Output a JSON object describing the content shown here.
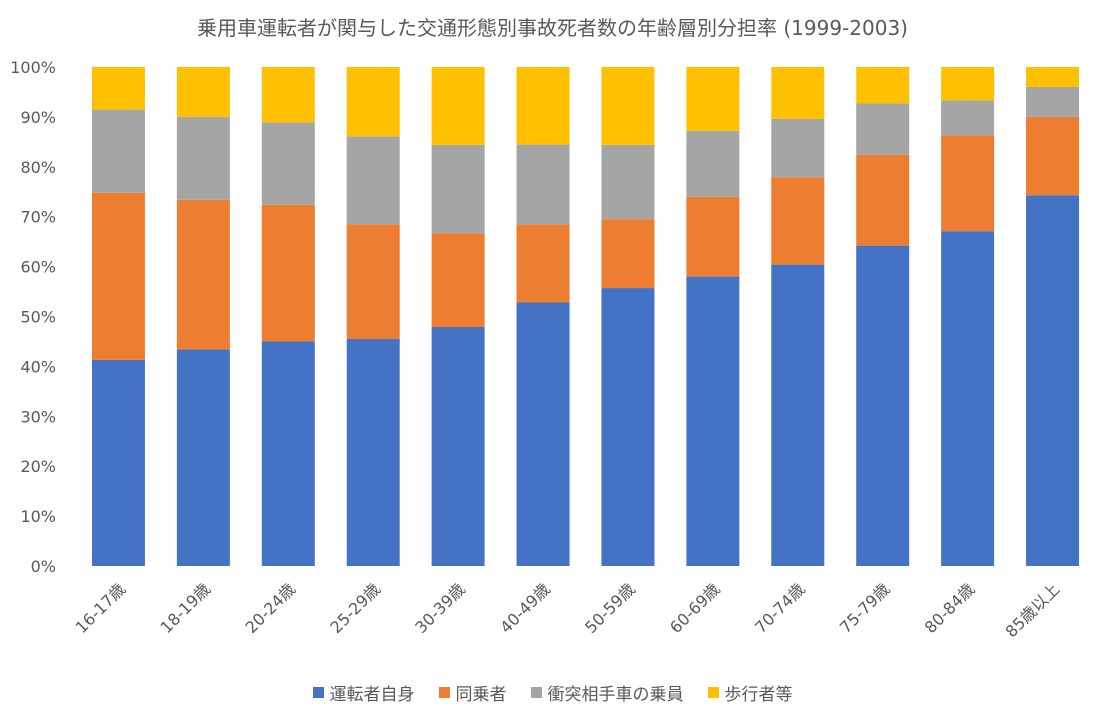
{
  "chart_data": {
    "type": "bar",
    "stacked": "percent",
    "title": "乗用車運転者が関与した交通形態別事故死者数の年齢層別分担率 (1999-2003)",
    "xlabel": "",
    "ylabel": "",
    "ylim": [
      0,
      100
    ],
    "y_ticks": [
      "0%",
      "10%",
      "20%",
      "30%",
      "40%",
      "50%",
      "60%",
      "70%",
      "80%",
      "90%",
      "100%"
    ],
    "grid": false,
    "legend_position": "bottom",
    "categories": [
      "16-17歳",
      "18-19歳",
      "20-24歳",
      "25-29歳",
      "30-39歳",
      "40-49歳",
      "50-59歳",
      "60-69歳",
      "70-74歳",
      "75-79歳",
      "80-84歳",
      "85歳以上"
    ],
    "series": [
      {
        "name": "運転者自身",
        "color": "#4472C4",
        "values": [
          41.3,
          43.4,
          45.0,
          45.5,
          47.9,
          52.8,
          55.7,
          58.0,
          60.4,
          64.2,
          67.1,
          74.3
        ]
      },
      {
        "name": "同乗者",
        "color": "#ED7D31",
        "values": [
          33.5,
          30.0,
          27.4,
          23.0,
          18.8,
          15.7,
          13.8,
          16.0,
          17.5,
          18.2,
          19.2,
          15.7
        ]
      },
      {
        "name": "衝突相手車の乗員",
        "color": "#A5A5A5",
        "values": [
          16.7,
          16.6,
          16.5,
          17.6,
          17.7,
          16.0,
          14.9,
          13.2,
          11.7,
          10.3,
          7.0,
          6.0
        ]
      },
      {
        "name": "歩行者等",
        "color": "#FFC000",
        "values": [
          8.5,
          10.0,
          11.1,
          13.9,
          15.6,
          15.5,
          15.6,
          12.8,
          10.4,
          7.3,
          6.7,
          4.0
        ]
      }
    ]
  }
}
